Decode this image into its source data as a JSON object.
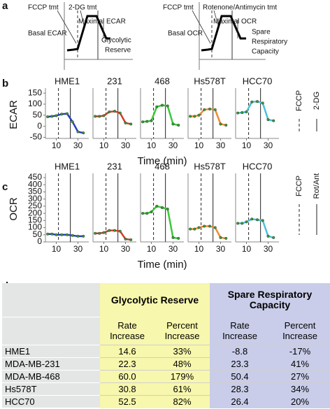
{
  "panel_labels": [
    "a",
    "b",
    "c",
    "d"
  ],
  "schematics": [
    {
      "labels": [
        "FCCP tmt",
        "2-DG tmt",
        "Maximal ECAR",
        "Basal ECAR",
        "Glycolytic",
        "Reserve"
      ]
    },
    {
      "labels": [
        "FCCP tmt",
        "Rotenone/Antimycin tmt",
        "Maximal OCR",
        "Basal OCR",
        "Spare",
        "Respiratory",
        "Capacity"
      ]
    }
  ],
  "chart_data": [
    {
      "type": "line",
      "ylabel": "ECAR",
      "xlabel": "Time (min)",
      "x": [
        2,
        6,
        10,
        15,
        20,
        25,
        30,
        35
      ],
      "xlim": [
        0,
        40
      ],
      "xticks": [
        10,
        30
      ],
      "ylim": [
        -55,
        160
      ],
      "yticks": [
        -50,
        0,
        50,
        100,
        150
      ],
      "events": [
        {
          "name": "FCCP",
          "x": 12,
          "style": "dashed"
        },
        {
          "name": "2-DG",
          "x": 23,
          "style": "solid"
        }
      ],
      "series": [
        {
          "name": "HME1",
          "color": "#2a3fc4",
          "values": [
            43,
            45,
            48,
            55,
            57,
            20,
            -25,
            -30
          ]
        },
        {
          "name": "231",
          "color": "#d63a2a",
          "values": [
            45,
            45,
            48,
            65,
            68,
            60,
            15,
            10
          ]
        },
        {
          "name": "468",
          "color": "#3cc83a",
          "values": [
            20,
            22,
            25,
            88,
            95,
            92,
            10,
            5
          ]
        },
        {
          "name": "Hs578T",
          "color": "#f08a30",
          "values": [
            45,
            45,
            50,
            75,
            78,
            75,
            10,
            5
          ]
        },
        {
          "name": "HCC70",
          "color": "#4cc0d8",
          "values": [
            60,
            62,
            65,
            110,
            112,
            105,
            30,
            25
          ]
        }
      ]
    },
    {
      "type": "line",
      "ylabel": "OCR",
      "xlabel": "Time (min)",
      "x": [
        2,
        6,
        10,
        15,
        20,
        25,
        30,
        35
      ],
      "xlim": [
        0,
        40
      ],
      "xticks": [
        10,
        30
      ],
      "ylim": [
        0,
        460
      ],
      "yticks": [
        0,
        50,
        100,
        150,
        200,
        250,
        300,
        350,
        400,
        450
      ],
      "events": [
        {
          "name": "FCCP",
          "x": 12,
          "style": "dashed"
        },
        {
          "name": "Rot/Ant",
          "x": 23,
          "style": "solid"
        }
      ],
      "series": [
        {
          "name": "HME1",
          "color": "#2a3fc4",
          "values": [
            55,
            55,
            50,
            50,
            50,
            45,
            40,
            40
          ]
        },
        {
          "name": "231",
          "color": "#d63a2a",
          "values": [
            60,
            60,
            65,
            80,
            80,
            75,
            20,
            15
          ]
        },
        {
          "name": "468",
          "color": "#3cc83a",
          "values": [
            200,
            200,
            210,
            250,
            240,
            230,
            30,
            25
          ]
        },
        {
          "name": "Hs578T",
          "color": "#f08a30",
          "values": [
            90,
            90,
            100,
            110,
            110,
            100,
            30,
            25
          ]
        },
        {
          "name": "HCC70",
          "color": "#4cc0d8",
          "values": [
            130,
            130,
            140,
            160,
            155,
            150,
            40,
            30
          ]
        }
      ]
    }
  ],
  "table": {
    "groups": [
      "Glycolytic Reserve",
      "Spare Respiratory Capacity"
    ],
    "subheaders": [
      "Rate Increase",
      "Percent Increase",
      "Rate Increase",
      "Percent Increase"
    ],
    "rows": [
      [
        "HME1",
        "14.6",
        "33%",
        "-8.8",
        "-17%"
      ],
      [
        "MDA-MB-231",
        "22.3",
        "48%",
        "23.3",
        "41%"
      ],
      [
        "MDA-MB-468",
        "60.0",
        "179%",
        "50.4",
        "27%"
      ],
      [
        "Hs578T",
        "30.8",
        "61%",
        "28.3",
        "34%"
      ],
      [
        "HCC70",
        "52.5",
        "82%",
        "26.4",
        "20%"
      ]
    ]
  }
}
